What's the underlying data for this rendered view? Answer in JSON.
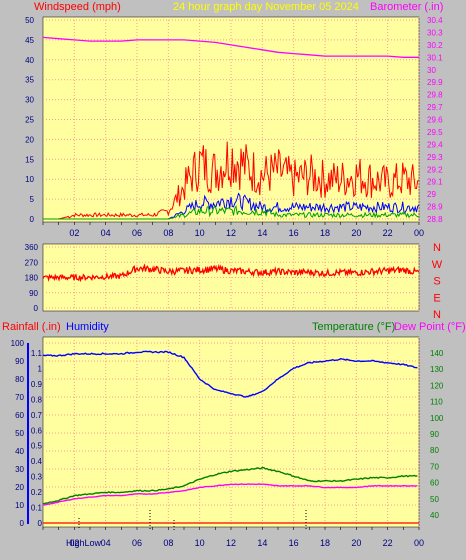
{
  "header": {
    "left_title": "Windspeed (mph)",
    "center_title": "24 hour graph day  November 05 2024",
    "right_title": "Barometer (.in)"
  },
  "colors": {
    "background": "#c0c0c0",
    "plot_bg": "#ffffa0",
    "windspeed": "#ff0000",
    "wind_avg": "#0000ff",
    "wind_low": "#00a000",
    "barometer": "#ff00ff",
    "title_yellow": "#ffff00",
    "rain": "#ff0000",
    "humidity": "#0000ff",
    "temperature": "#008000",
    "dewpoint": "#ff00ff"
  },
  "x_ticks": [
    "02",
    "04",
    "06",
    "08",
    "10",
    "12",
    "14",
    "16",
    "18",
    "20",
    "22",
    "00"
  ],
  "wind_panel": {
    "left_ticks": [
      "50",
      "45",
      "40",
      "35",
      "30",
      "25",
      "20",
      "15",
      "10",
      "5",
      "0"
    ],
    "right_ticks": [
      "30.4",
      "30.3",
      "30.2",
      "30.1",
      "30",
      "29.9",
      "29.8",
      "29.7",
      "29.6",
      "29.5",
      "29.4",
      "29.3",
      "29.2",
      "29.1",
      "29",
      "28.9",
      "28.8"
    ]
  },
  "direction_panel": {
    "left_ticks": [
      "360",
      "270",
      "180",
      "90",
      "0"
    ],
    "compass": [
      "N",
      "W",
      "S",
      "E",
      "N"
    ]
  },
  "bottom_panel": {
    "rain_label": "Rainfall (.in)",
    "humidity_label": "Humidity",
    "temperature_label": "Temperature (°F)",
    "dewpoint_label": "Dew Point (°F)",
    "humidity_ticks": [
      "100",
      "90",
      "80",
      "70",
      "60",
      "50",
      "40",
      "30",
      "20",
      "10",
      "0"
    ],
    "rain_ticks": [
      "1.1",
      "1",
      "0.9",
      "0.8",
      "0.7",
      "0.6",
      "0.5",
      "0.4",
      "0.3",
      "0.2",
      "0.1",
      "0"
    ],
    "temp_ticks": [
      "140",
      "130",
      "120",
      "110",
      "100",
      "90",
      "80",
      "70",
      "60",
      "50",
      "40"
    ],
    "high_low_label": "HighLow"
  },
  "chart_data": [
    {
      "type": "line",
      "title": "24 hour graph day  November 05 2024",
      "x_hours": [
        0,
        1,
        2,
        3,
        4,
        5,
        6,
        7,
        8,
        9,
        10,
        11,
        12,
        13,
        14,
        15,
        16,
        17,
        18,
        19,
        20,
        21,
        22,
        23,
        24
      ],
      "series": [
        {
          "name": "Barometer (.in)",
          "axis": "right",
          "ylim": [
            28.75,
            30.45
          ],
          "values": [
            30.26,
            30.25,
            30.24,
            30.23,
            30.23,
            30.23,
            30.24,
            30.24,
            30.24,
            30.24,
            30.23,
            30.22,
            30.2,
            30.18,
            30.16,
            30.14,
            30.13,
            30.12,
            30.11,
            30.11,
            30.11,
            30.11,
            30.11,
            30.1,
            30.1
          ]
        },
        {
          "name": "Windspeed (mph)",
          "axis": "left",
          "ylim": [
            0,
            50
          ],
          "gust_values": [
            0,
            0,
            1,
            1,
            1,
            1,
            1,
            1,
            2,
            8,
            14,
            12,
            16,
            13,
            11,
            12,
            10,
            11,
            10,
            10,
            11,
            10,
            9,
            10,
            9
          ],
          "avg_values": [
            0,
            0,
            0,
            0,
            0,
            0,
            0,
            0,
            0,
            2,
            4,
            4,
            5,
            4,
            3,
            3,
            3,
            3,
            3,
            3,
            3,
            3,
            3,
            3,
            3
          ],
          "low_values": [
            0,
            0,
            0,
            0,
            0,
            0,
            0,
            0,
            0,
            1,
            2,
            2,
            2,
            2,
            2,
            1,
            1,
            1,
            1,
            1,
            1,
            1,
            1,
            1,
            1
          ]
        }
      ]
    },
    {
      "type": "line",
      "title": "",
      "ylabel": "",
      "x_hours": [
        0,
        1,
        2,
        3,
        4,
        5,
        6,
        7,
        8,
        9,
        10,
        11,
        12,
        13,
        14,
        15,
        16,
        17,
        18,
        19,
        20,
        21,
        22,
        23,
        24
      ],
      "ylim": [
        0,
        360
      ],
      "series": [
        {
          "values": [
            180,
            180,
            180,
            182,
            185,
            188,
            235,
            230,
            215,
            220,
            225,
            230,
            220,
            215,
            210,
            215,
            210,
            212,
            205,
            210,
            208,
            215,
            220,
            225,
            210
          ]
        }
      ]
    },
    {
      "type": "line",
      "x_hours": [
        0,
        1,
        2,
        3,
        4,
        5,
        6,
        7,
        8,
        9,
        10,
        11,
        12,
        13,
        14,
        15,
        16,
        17,
        18,
        19,
        20,
        21,
        22,
        23,
        24
      ],
      "series": [
        {
          "name": "Humidity",
          "axis": "left",
          "ylim": [
            0,
            100
          ],
          "values": [
            93,
            93,
            94,
            94,
            94,
            94,
            95,
            95,
            95,
            92,
            80,
            74,
            72,
            70,
            73,
            80,
            86,
            89,
            90,
            91,
            90,
            90,
            89,
            88,
            86
          ]
        },
        {
          "name": "Temperature (°F)",
          "axis": "right",
          "ylim": [
            35,
            145
          ],
          "values": [
            47,
            49,
            52,
            53,
            54,
            54,
            55,
            55,
            56,
            58,
            62,
            65,
            67,
            68,
            69,
            67,
            64,
            61,
            61,
            61,
            62,
            63,
            63,
            64,
            64
          ]
        },
        {
          "name": "Dew Point (°F)",
          "axis": "right",
          "ylim": [
            35,
            145
          ],
          "values": [
            46,
            48,
            50,
            51,
            52,
            52,
            53,
            53,
            54,
            55,
            57,
            58,
            59,
            59,
            59,
            58,
            58,
            58,
            57,
            57,
            57,
            58,
            58,
            58,
            58
          ]
        },
        {
          "name": "Rainfall (.in)",
          "axis": "left",
          "ylim": [
            0,
            1.1
          ],
          "values": [
            0,
            0,
            0,
            0,
            0,
            0,
            0,
            0,
            0,
            0,
            0,
            0,
            0,
            0,
            0,
            0,
            0,
            0,
            0,
            0,
            0,
            0,
            0,
            0,
            0
          ]
        }
      ]
    }
  ]
}
